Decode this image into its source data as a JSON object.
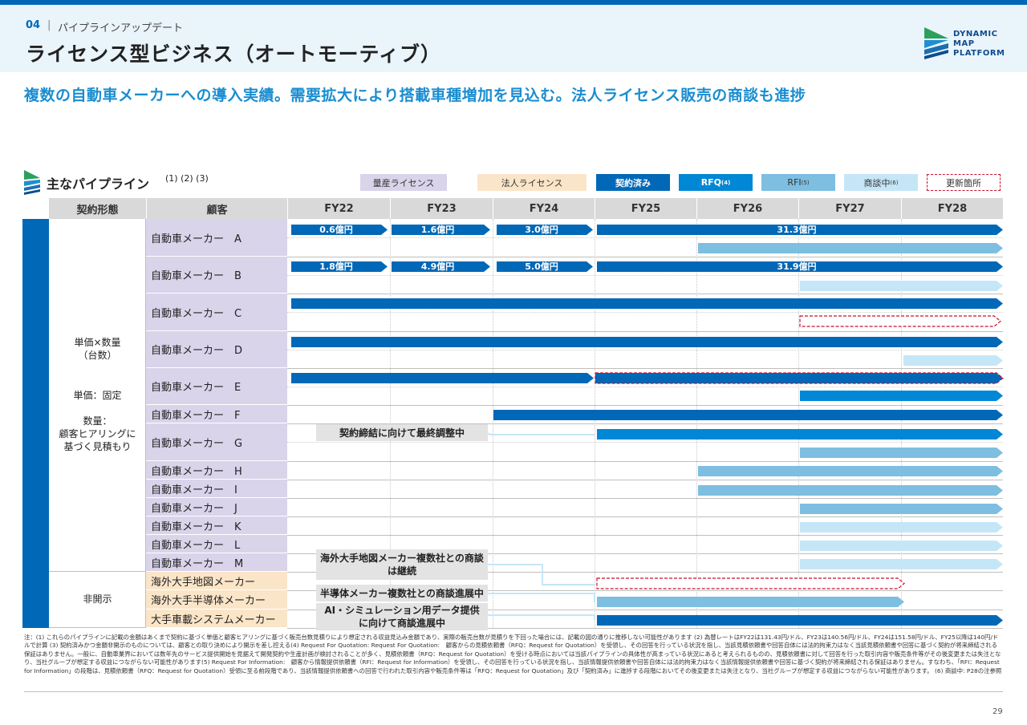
{
  "header": {
    "section_number": "04",
    "separator": "|",
    "section_label": "パイプラインアップデート",
    "title": "ライセンス型ビジネス（オートモーティブ）"
  },
  "logo": {
    "line1": "DYNAMIC",
    "line2": "MAP",
    "line3": "PLATFORM"
  },
  "headline": "複数の自動車メーカーへの導入実績。需要拡大により搭載車種増加を見込む。法人ライセンス販売の商談も進捗",
  "pipeline": {
    "title": "主なパイプライン",
    "notes": "(1) (2) (3)"
  },
  "legend": {
    "mass_license": "量産ライセンス",
    "corp_license": "法人ライセンス",
    "contracted": "契約済み",
    "rfq": "RFQ",
    "rfq_note": "(4)",
    "rfi": "RFI",
    "rfi_note": "(5)",
    "negotiating": "商談中",
    "negotiating_note": "(6)",
    "updated": "更新箇所"
  },
  "columns": {
    "contract_type": "契約形態",
    "customer": "顧客",
    "years": [
      "FY22",
      "FY23",
      "FY24",
      "FY25",
      "FY26",
      "FY27",
      "FY28"
    ]
  },
  "contract_types": {
    "unit_line1": "単価×数量",
    "unit_line2": "（台数）",
    "unit_fixed": "単価：固定",
    "qty_line1": "数量：",
    "qty_line2": "顧客ヒアリングに",
    "qty_line3": "基づく見積もり",
    "undisclosed": "非開示"
  },
  "customers": [
    "自動車メーカー　A",
    "自動車メーカー　B",
    "自動車メーカー　C",
    "自動車メーカー　D",
    "自動車メーカー　E",
    "自動車メーカー　F",
    "自動車メーカー　G",
    "自動車メーカー　H",
    "自動車メーカー　I",
    "自動車メーカー　J",
    "自動車メーカー　K",
    "自動車メーカー　L",
    "自動車メーカー　M",
    "海外大手地図メーカー",
    "海外大手半導体メーカー",
    "大手車載システムメーカー"
  ],
  "amounts": {
    "a_fy22": "0.6億円",
    "a_fy23": "1.6億円",
    "a_fy24": "3.0億円",
    "a_fy25": "31.3億円",
    "b_fy22": "1.8億円",
    "b_fy23": "4.9億円",
    "b_fy24": "5.0億円",
    "b_fy25": "31.9億円"
  },
  "notes_boxes": {
    "g_note": "契約締結に向けて最終調整中",
    "map_note_line1": "海外大手地図メーカー複数社との商談",
    "map_note_line2": "は継続",
    "semi_note": "半導体メーカー複数社との商談進展中",
    "sys_note_line1": "AI・シミュレーション用データ提供",
    "sys_note_line2": "に向けて商談進展中"
  },
  "colors": {
    "contracted": "#0068B7",
    "rfq": "#0087D6",
    "rfi": "#7DBEE1",
    "negotiating": "#C5E6F7",
    "updated": "#C8102E",
    "mass_license": "#D9D4EA",
    "corp_license": "#FBE5C8"
  },
  "footnote": "注：(1) これらのパイプラインに記載の金額はあくまで契約に基づく単価と顧客ヒアリングに基づく販売台数見積りにより想定される収益見込み金額であり、実際の販売台数が見積りを下回った場合には、記載の図の通りに推移しない可能性があります (2) 為替レートはFY22は131.43円/ドル、FY23は140.56円/ドル、FY24は151.58円/ドル、FY25以降は140円/ドルで計算 (3) 契約済みかつ金額非開示のものについては、顧客との取り決めにより開示を差し控える(4) Request For Quotation: Request For Quotation:　顧客からの見積依頼書（RFQ：Request for Quotation）を受領し、その回答を行っている状況を指し、当該見積依頼書や回答自体には法的拘束力はなく当該見積依頼書や回答に基づく契約が将来締結される保証はありません。一般に、自動車業界においては数年先のサービス提供開始を見据えて開発契約や生産計画が検討されることが多く、見積依頼書（RFQ：Request for Quotation）を受ける時点においては当該パイプラインの具体性が高まっている状況にあると考えられるものの、見積依頼書に対して回答を行った取引内容や販売条件等がその後変更または失注となり、当社グループが想定する収益につながらない可能性があります(5) Request For Information:　顧客から情報提供依頼書（RFI：Request for Information）を受領し、その回答を行っている状況を指し、当該情報提供依頼書や回答自体には法的拘束力はなく当該情報提供依頼書や回答に基づく契約が将来締結される保証はありません。すなわち、「RFI：Request for Information」の段階は、見積依頼書（RFQ：Request for Quotation）受領に至る前段階であり、当該情報提供依頼書への回答で行われた取引内容や販売条件等は「RFQ：Request for Quotation」及び「契約済み」に進捗する段階においてその後変更または失注となり、当社グループが想定する収益につながらない可能性があります。 (6) 商談中: P28の注参照",
  "page_number": "29"
}
